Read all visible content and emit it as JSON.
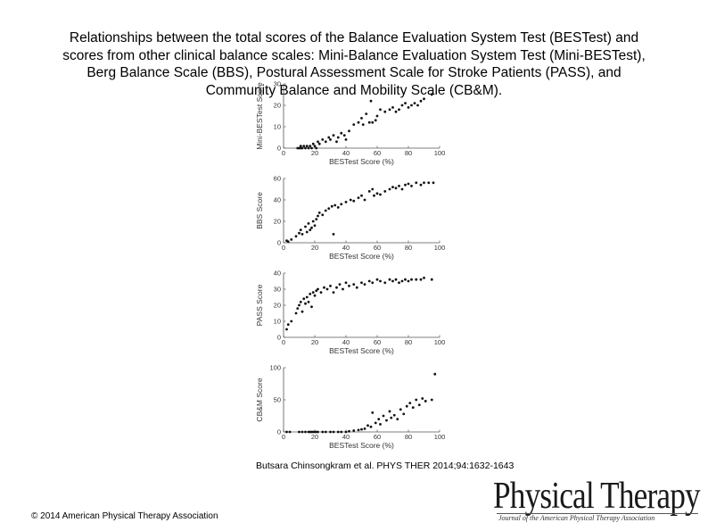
{
  "title_lines": [
    "Relationships between the total scores of the Balance Evaluation System Test (BESTest) and",
    "scores from other clinical balance scales: Mini-Balance Evaluation System Test (Mini-BESTest),",
    "Berg Balance Scale (BBS), Postural Assessment Scale for Stroke Patients (PASS), and",
    "Community Balance and Mobility Scale (CB&M)."
  ],
  "citation": "Butsara Chinsongkram et al. PHYS THER 2014;94:1632-1643",
  "copyright": "© 2014 American Physical Therapy Association",
  "logo": {
    "name": "Physical Therapy",
    "subtitle": "Journal of the American Physical Therapy Association"
  },
  "chart_data": [
    {
      "type": "scatter",
      "xlabel": "BESTest Score (%)",
      "ylabel": "Mini-BESTest Score",
      "xlim": [
        0,
        100
      ],
      "ylim": [
        0,
        30
      ],
      "xticks": [
        0,
        20,
        40,
        60,
        80,
        100
      ],
      "yticks": [
        0,
        10,
        20,
        30
      ],
      "points": [
        [
          9,
          0
        ],
        [
          10,
          0
        ],
        [
          11,
          0
        ],
        [
          11,
          1
        ],
        [
          12,
          0
        ],
        [
          13,
          1
        ],
        [
          14,
          0
        ],
        [
          15,
          1
        ],
        [
          16,
          0
        ],
        [
          17,
          1
        ],
        [
          18,
          0
        ],
        [
          19,
          2
        ],
        [
          20,
          1
        ],
        [
          21,
          0
        ],
        [
          22,
          3
        ],
        [
          23,
          2
        ],
        [
          25,
          4
        ],
        [
          27,
          3
        ],
        [
          29,
          5
        ],
        [
          30,
          4
        ],
        [
          32,
          6
        ],
        [
          34,
          3
        ],
        [
          35,
          5
        ],
        [
          37,
          7
        ],
        [
          39,
          6
        ],
        [
          40,
          4
        ],
        [
          42,
          8
        ],
        [
          45,
          11
        ],
        [
          48,
          12
        ],
        [
          50,
          14
        ],
        [
          51,
          11
        ],
        [
          53,
          16
        ],
        [
          55,
          12
        ],
        [
          56,
          22
        ],
        [
          57,
          12
        ],
        [
          59,
          13
        ],
        [
          60,
          15
        ],
        [
          62,
          18
        ],
        [
          65,
          17
        ],
        [
          68,
          18
        ],
        [
          70,
          19
        ],
        [
          72,
          17
        ],
        [
          74,
          18
        ],
        [
          76,
          20
        ],
        [
          78,
          21
        ],
        [
          80,
          19
        ],
        [
          82,
          20
        ],
        [
          84,
          21
        ],
        [
          86,
          20
        ],
        [
          88,
          22
        ],
        [
          90,
          23
        ],
        [
          95,
          25
        ]
      ]
    },
    {
      "type": "scatter",
      "xlabel": "BESTest Score (%)",
      "ylabel": "BBS Score",
      "xlim": [
        0,
        100
      ],
      "ylim": [
        0,
        60
      ],
      "xticks": [
        0,
        20,
        40,
        60,
        80,
        100
      ],
      "yticks": [
        0,
        20,
        40,
        60
      ],
      "points": [
        [
          2,
          2
        ],
        [
          3,
          1
        ],
        [
          5,
          3
        ],
        [
          8,
          6
        ],
        [
          10,
          9
        ],
        [
          11,
          12
        ],
        [
          12,
          8
        ],
        [
          14,
          15
        ],
        [
          15,
          10
        ],
        [
          16,
          18
        ],
        [
          17,
          12
        ],
        [
          18,
          14
        ],
        [
          19,
          20
        ],
        [
          20,
          16
        ],
        [
          21,
          22
        ],
        [
          22,
          25
        ],
        [
          23,
          28
        ],
        [
          25,
          26
        ],
        [
          27,
          30
        ],
        [
          29,
          32
        ],
        [
          31,
          34
        ],
        [
          32,
          8
        ],
        [
          33,
          35
        ],
        [
          35,
          33
        ],
        [
          37,
          36
        ],
        [
          40,
          38
        ],
        [
          43,
          40
        ],
        [
          45,
          39
        ],
        [
          48,
          42
        ],
        [
          50,
          44
        ],
        [
          52,
          40
        ],
        [
          55,
          48
        ],
        [
          57,
          50
        ],
        [
          58,
          44
        ],
        [
          60,
          46
        ],
        [
          62,
          45
        ],
        [
          65,
          48
        ],
        [
          68,
          50
        ],
        [
          70,
          52
        ],
        [
          72,
          51
        ],
        [
          74,
          53
        ],
        [
          76,
          50
        ],
        [
          78,
          54
        ],
        [
          80,
          55
        ],
        [
          82,
          53
        ],
        [
          85,
          56
        ],
        [
          88,
          54
        ],
        [
          90,
          56
        ],
        [
          93,
          56
        ],
        [
          96,
          56
        ]
      ]
    },
    {
      "type": "scatter",
      "xlabel": "BESTest Score (%)",
      "ylabel": "PASS Score",
      "xlim": [
        0,
        100
      ],
      "ylim": [
        0,
        40
      ],
      "xticks": [
        0,
        20,
        40,
        60,
        80,
        100
      ],
      "yticks": [
        0,
        10,
        20,
        30,
        40
      ],
      "points": [
        [
          2,
          5
        ],
        [
          3,
          8
        ],
        [
          5,
          10
        ],
        [
          8,
          15
        ],
        [
          9,
          18
        ],
        [
          10,
          20
        ],
        [
          11,
          22
        ],
        [
          12,
          16
        ],
        [
          13,
          24
        ],
        [
          14,
          21
        ],
        [
          15,
          25
        ],
        [
          16,
          22
        ],
        [
          17,
          27
        ],
        [
          18,
          19
        ],
        [
          19,
          28
        ],
        [
          20,
          26
        ],
        [
          21,
          29
        ],
        [
          22,
          30
        ],
        [
          24,
          28
        ],
        [
          26,
          31
        ],
        [
          28,
          30
        ],
        [
          30,
          32
        ],
        [
          32,
          28
        ],
        [
          34,
          31
        ],
        [
          36,
          33
        ],
        [
          38,
          30
        ],
        [
          40,
          34
        ],
        [
          42,
          32
        ],
        [
          45,
          33
        ],
        [
          47,
          31
        ],
        [
          50,
          34
        ],
        [
          52,
          33
        ],
        [
          55,
          35
        ],
        [
          57,
          34
        ],
        [
          60,
          36
        ],
        [
          62,
          35
        ],
        [
          65,
          34
        ],
        [
          68,
          36
        ],
        [
          70,
          35
        ],
        [
          72,
          36
        ],
        [
          74,
          34
        ],
        [
          76,
          35
        ],
        [
          78,
          36
        ],
        [
          80,
          35
        ],
        [
          82,
          36
        ],
        [
          85,
          36
        ],
        [
          88,
          36
        ],
        [
          90,
          37
        ],
        [
          95,
          36
        ]
      ]
    },
    {
      "type": "scatter",
      "xlabel": "BESTest Score (%)",
      "ylabel": "CB&M Score",
      "xlim": [
        0,
        100
      ],
      "ylim": [
        0,
        100
      ],
      "xticks": [
        0,
        20,
        40,
        60,
        80,
        100
      ],
      "yticks": [
        0,
        50,
        100
      ],
      "points": [
        [
          2,
          0
        ],
        [
          4,
          0
        ],
        [
          10,
          0
        ],
        [
          12,
          0
        ],
        [
          14,
          0
        ],
        [
          16,
          0
        ],
        [
          17,
          0
        ],
        [
          18,
          0
        ],
        [
          19,
          0
        ],
        [
          20,
          0
        ],
        [
          21,
          0
        ],
        [
          22,
          0
        ],
        [
          25,
          0
        ],
        [
          27,
          0
        ],
        [
          30,
          0
        ],
        [
          32,
          0
        ],
        [
          35,
          0
        ],
        [
          37,
          0
        ],
        [
          40,
          0
        ],
        [
          42,
          1
        ],
        [
          45,
          2
        ],
        [
          48,
          3
        ],
        [
          50,
          4
        ],
        [
          52,
          5
        ],
        [
          54,
          10
        ],
        [
          56,
          8
        ],
        [
          57,
          30
        ],
        [
          59,
          14
        ],
        [
          61,
          20
        ],
        [
          62,
          12
        ],
        [
          64,
          25
        ],
        [
          66,
          18
        ],
        [
          68,
          32
        ],
        [
          69,
          22
        ],
        [
          71,
          26
        ],
        [
          73,
          20
        ],
        [
          75,
          35
        ],
        [
          77,
          28
        ],
        [
          79,
          40
        ],
        [
          81,
          45
        ],
        [
          83,
          38
        ],
        [
          85,
          50
        ],
        [
          87,
          42
        ],
        [
          89,
          52
        ],
        [
          91,
          48
        ],
        [
          95,
          50
        ],
        [
          97,
          90
        ]
      ]
    }
  ]
}
